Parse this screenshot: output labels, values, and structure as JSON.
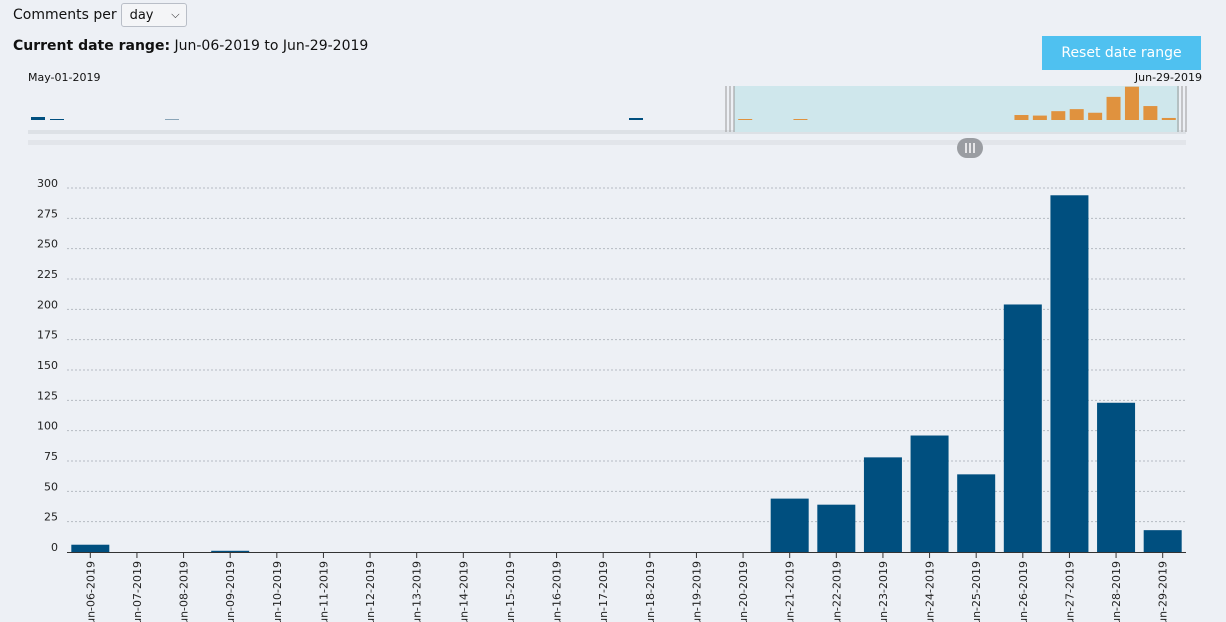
{
  "controls": {
    "per_label": "Comments per",
    "per_value": "day"
  },
  "range": {
    "label": "Current date range:",
    "value": "Jun-06-2019 to Jun-29-2019"
  },
  "reset_label": "Reset date range",
  "navigator": {
    "start_label": "May-01-2019",
    "end_label": "Jun-29-2019"
  },
  "colors": {
    "bar": "#004f7f",
    "navigator_bar": "#e0923e",
    "navigator_selection": "#cfe7ec",
    "button": "#4fc1f0"
  },
  "chart_data": {
    "type": "bar",
    "categories": [
      "Jun-06-2019",
      "Jun-07-2019",
      "Jun-08-2019",
      "Jun-09-2019",
      "Jun-10-2019",
      "Jun-11-2019",
      "Jun-12-2019",
      "Jun-13-2019",
      "Jun-14-2019",
      "Jun-15-2019",
      "Jun-16-2019",
      "Jun-17-2019",
      "Jun-18-2019",
      "Jun-19-2019",
      "Jun-20-2019",
      "Jun-21-2019",
      "Jun-22-2019",
      "Jun-23-2019",
      "Jun-24-2019",
      "Jun-25-2019",
      "Jun-26-2019",
      "Jun-27-2019",
      "Jun-28-2019",
      "Jun-29-2019"
    ],
    "values": [
      6,
      0,
      0,
      1,
      0,
      0,
      0,
      0,
      0,
      0,
      0,
      0,
      0,
      0,
      0,
      44,
      39,
      78,
      96,
      64,
      204,
      294,
      123,
      18
    ],
    "yticks": [
      0,
      25,
      50,
      75,
      100,
      125,
      150,
      175,
      200,
      225,
      250,
      275,
      300
    ],
    "ylim": [
      0,
      300
    ],
    "grid": true,
    "title": "",
    "xlabel": "",
    "ylabel": ""
  }
}
